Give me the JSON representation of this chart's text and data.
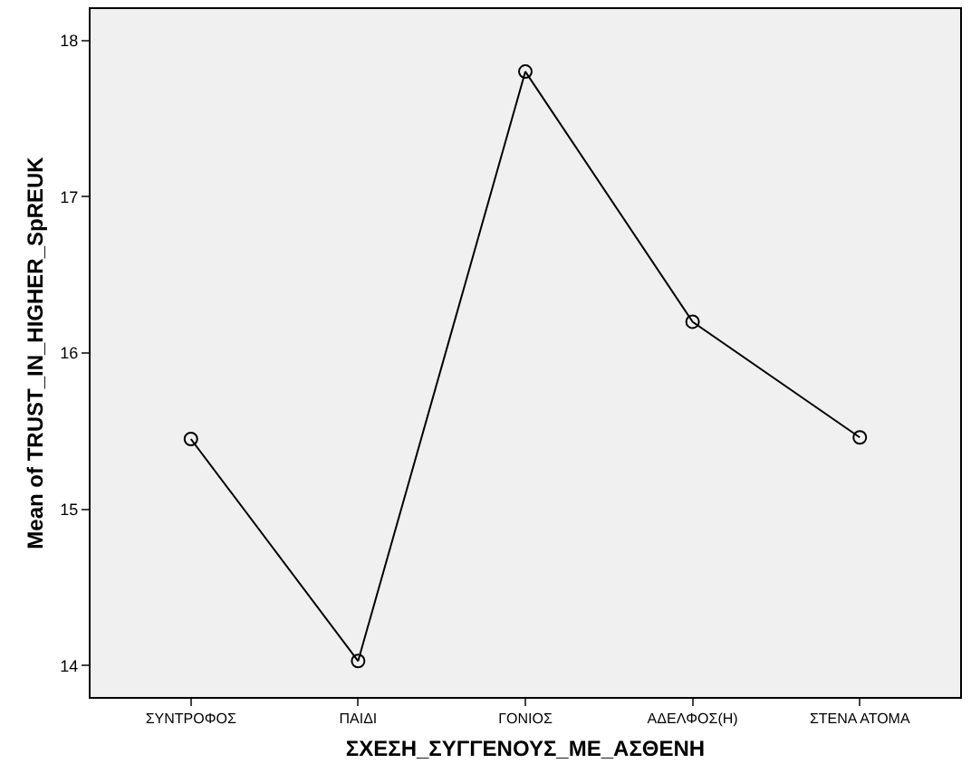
{
  "chart_data": {
    "type": "line",
    "xlabel": "ΣΧΕΣΗ_ΣΥΓΓΕΝΟΥΣ_ΜΕ_ΑΣΘΕΝΗ",
    "ylabel": "Mean of TRUST_IN_HIGHER_SpREUK",
    "categories": [
      "ΣΥΝΤΡΟΦΟΣ",
      "ΠΑΙΔΙ",
      "ΓΟΝΙΟΣ",
      "ΑΔΕΛΦΟΣ(Η)",
      "ΣΤΕΝΑ ΑΤΟΜΑ"
    ],
    "series": [
      {
        "color": "#000000",
        "values": [
          15.45,
          14.03,
          17.8,
          16.2,
          15.46
        ]
      }
    ],
    "ylim": [
      13.8,
      18.2
    ],
    "yticks": [
      14,
      15,
      16,
      17,
      18
    ],
    "marker": "circle",
    "line_style": "solid",
    "grid": false
  }
}
